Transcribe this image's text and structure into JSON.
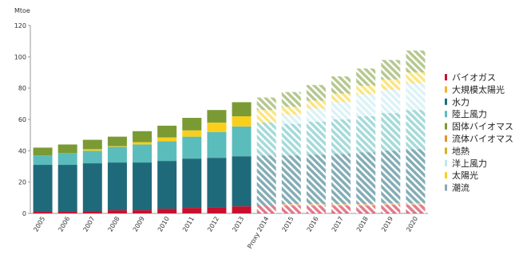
{
  "chart_data": {
    "type": "stacked-bar",
    "y_unit": "Mtoe",
    "categories": [
      "2005",
      "2006",
      "2007",
      "2008",
      "2009",
      "2010",
      "2011",
      "2012",
      "2013",
      "Proxy 2014",
      "2015",
      "2016",
      "2017",
      "2018",
      "2019",
      "2020"
    ],
    "ylim": [
      0,
      120
    ],
    "yticks": [
      0,
      20,
      40,
      60,
      80,
      100,
      120
    ],
    "series": [
      {
        "name": "バイオガス",
        "color": "#c8102e",
        "values": [
          1,
          1,
          1.5,
          2,
          2,
          3,
          3.5,
          4,
          4.5,
          5,
          5,
          5,
          5,
          5,
          5.5,
          5.5
        ]
      },
      {
        "name": "流体バイオマス",
        "color": "#e8902a",
        "values": [
          0,
          0,
          0,
          0,
          0,
          0,
          0,
          0,
          0,
          0,
          1,
          1,
          1,
          1,
          1,
          1
        ]
      },
      {
        "name": "水力",
        "color": "#1f6a7a",
        "values": [
          30,
          30,
          30.5,
          30.5,
          30.5,
          30.5,
          31.5,
          31.5,
          32,
          32,
          31,
          31.5,
          32,
          33,
          33.5,
          34.5
        ]
      },
      {
        "name": "陸上風力",
        "color": "#5bbcbc",
        "values": [
          6,
          7.5,
          8,
          10,
          11.5,
          12.5,
          14,
          16.5,
          19,
          21,
          20,
          21,
          22,
          23,
          24,
          25
        ]
      },
      {
        "name": "洋上風力",
        "color": "#bfe6ee",
        "values": [
          0,
          0,
          0,
          0,
          0,
          0,
          0,
          0,
          0,
          0,
          6,
          8.5,
          11,
          14,
          15,
          17
        ]
      },
      {
        "name": "地熱",
        "color": "#d4b21a",
        "values": [
          0,
          0,
          0,
          0,
          0,
          0,
          0,
          0,
          0,
          0,
          0,
          0,
          0,
          0,
          0,
          0
        ]
      },
      {
        "name": "大規模太陽光",
        "color": "#f2b233",
        "values": [
          0,
          0,
          0,
          0,
          0,
          0,
          0,
          0,
          0,
          0,
          0,
          0,
          0,
          0,
          0,
          0
        ]
      },
      {
        "name": "太陽光",
        "color": "#f9cf1d",
        "values": [
          0,
          0,
          1,
          0.5,
          1.5,
          2.5,
          4,
          6,
          6.5,
          8,
          5,
          5,
          5.5,
          5.5,
          6.5,
          7
        ]
      },
      {
        "name": "固体バイオマス",
        "color": "#7a9a34",
        "values": [
          5,
          5.5,
          6,
          6,
          7,
          7.5,
          8,
          8,
          9,
          8,
          9.5,
          10,
          11,
          11,
          12.5,
          14
        ]
      },
      {
        "name": "潮流",
        "color": "#8fa5b8",
        "values": [
          0,
          0,
          0,
          0,
          0,
          0,
          0,
          0,
          0,
          0,
          0,
          0,
          0,
          0,
          0,
          0
        ]
      }
    ],
    "legend_order": [
      0,
      6,
      2,
      3,
      8,
      1,
      5,
      4,
      7,
      9
    ]
  }
}
